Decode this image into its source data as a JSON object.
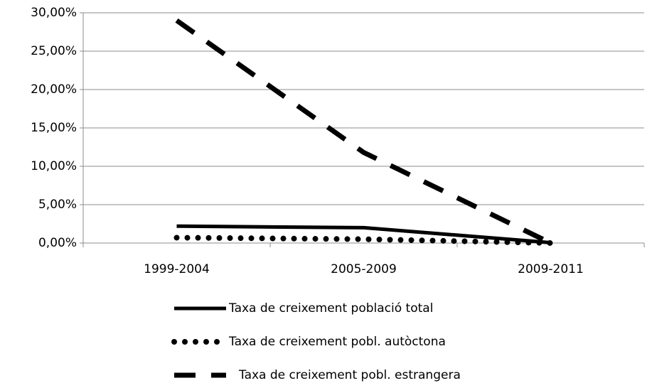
{
  "chart_data": {
    "type": "line",
    "categories": [
      "1999-2004",
      "2005-2009",
      "2009-2011"
    ],
    "series": [
      {
        "name": "Taxa de creixement població  total",
        "color": "#000000",
        "dash": "solid",
        "values": [
          2.2,
          2.0,
          0.05
        ]
      },
      {
        "name": "Taxa de creixement pobl. autòctona",
        "color": "#000000",
        "dash": "dotted",
        "values": [
          0.7,
          0.5,
          0.0
        ]
      },
      {
        "name": "Taxa de creixement pobl. estrangera",
        "color": "#000000",
        "dash": "dashed",
        "values": [
          29.0,
          11.8,
          0.0
        ]
      }
    ],
    "ylim": [
      0,
      30
    ],
    "yticks": [
      {
        "value": 0,
        "label": "0,00%"
      },
      {
        "value": 5,
        "label": "5,00%"
      },
      {
        "value": 10,
        "label": "10,00%"
      },
      {
        "value": 15,
        "label": "15,00%"
      },
      {
        "value": 20,
        "label": "20,00%"
      },
      {
        "value": 25,
        "label": "25,00%"
      },
      {
        "value": 30,
        "label": "30,00%"
      }
    ],
    "grid": true,
    "legend": "bottom"
  }
}
